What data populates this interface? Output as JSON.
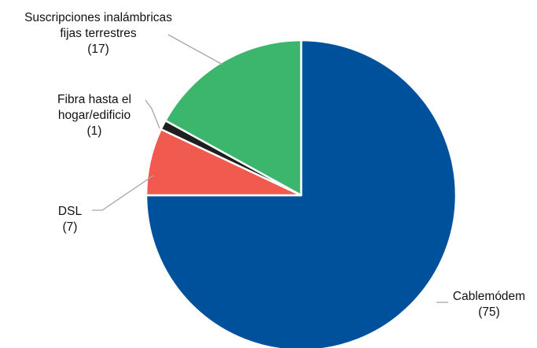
{
  "chart_data": {
    "type": "pie",
    "title": "",
    "start_angle_deg": 0,
    "direction": "clockwise",
    "slices": [
      {
        "label_lines": [
          "Cablemódem",
          "(75)"
        ],
        "value": 75,
        "color": "#00519c"
      },
      {
        "label_lines": [
          "DSL",
          "(7)"
        ],
        "value": 7,
        "color": "#f05a4f"
      },
      {
        "label_lines": [
          "Fibra hasta el",
          "hogar/edificio",
          "(1)"
        ],
        "value": 1,
        "color": "#1f1f1f"
      },
      {
        "label_lines": [
          "Suscripciones inalámbricas",
          "fijas terrestres",
          "(17)"
        ],
        "value": 17,
        "color": "#3bb66c"
      }
    ]
  }
}
